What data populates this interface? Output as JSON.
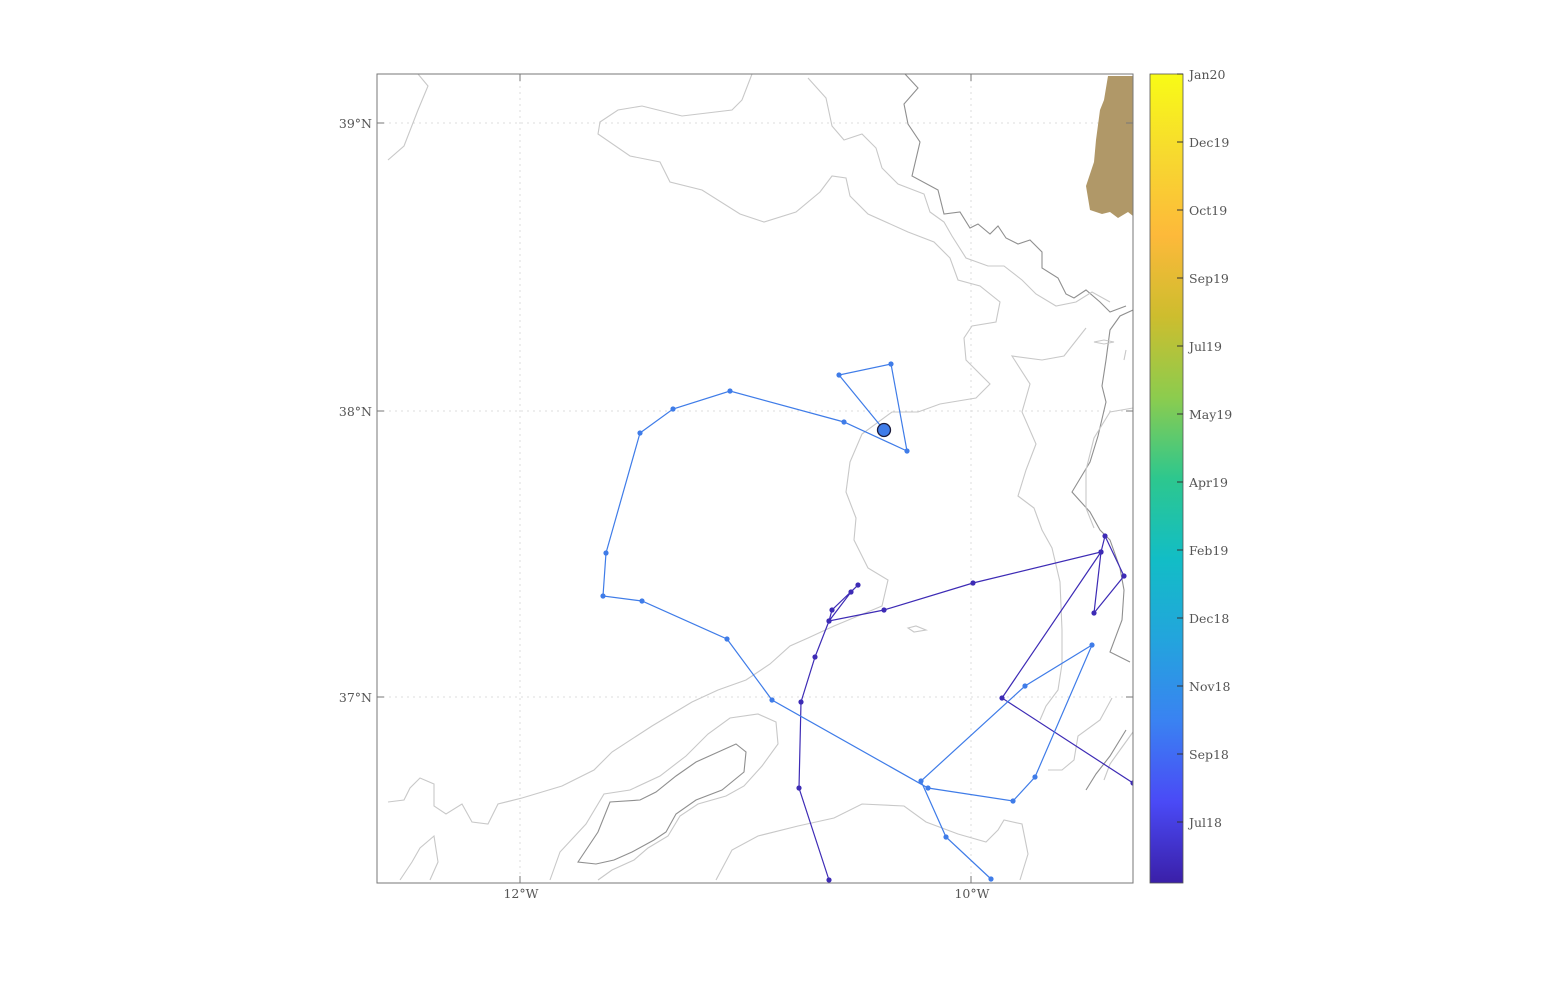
{
  "map": {
    "lon_labels": [
      "12°W",
      "10°W"
    ],
    "lat_labels": [
      "39°N",
      "38°N",
      "37°N"
    ],
    "colorbar_labels": [
      "Jan20",
      "Dec19",
      "Oct19",
      "Sep19",
      "Jul19",
      "May19",
      "Apr19",
      "Feb19",
      "Dec18",
      "Nov18",
      "Sep18",
      "Jul18"
    ],
    "colors": {
      "land": "#b09868",
      "contour_light": "#c8c8c8",
      "contour_dark": "#8f8f8f",
      "track_early": "#3d2bb5",
      "track_late": "#3f7ce8",
      "last_position": "#3f7ce8",
      "frame": "#777777"
    },
    "colorbar_stops": [
      "#3a1fa8",
      "#4a4af6",
      "#3a82f2",
      "#23a4dd",
      "#12bdc6",
      "#2dc78e",
      "#8ccc4e",
      "#cdbd2e",
      "#fdb93a",
      "#f7d92f",
      "#f8fb16"
    ]
  }
}
